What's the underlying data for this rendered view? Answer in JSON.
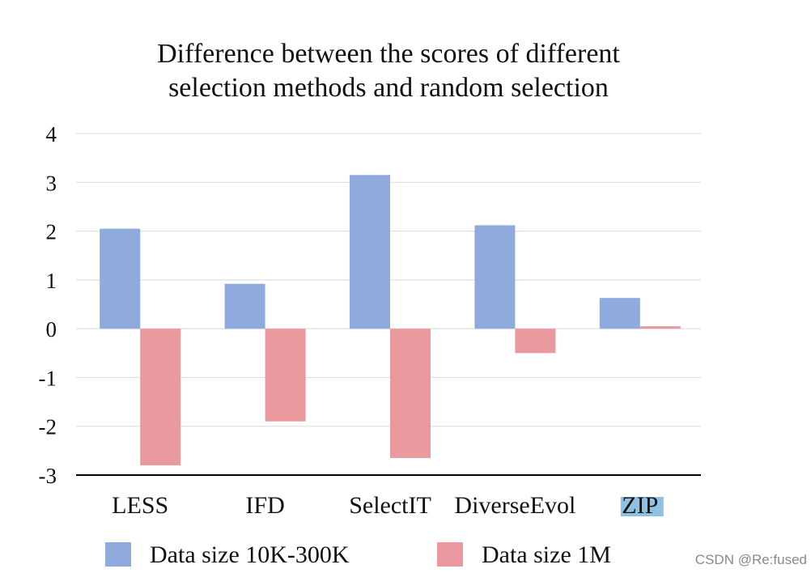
{
  "chart_data": {
    "type": "bar",
    "title": "Difference between the scores of different selection methods and random selection",
    "title_lines": [
      "Difference between the scores of different",
      "selection methods and random selection"
    ],
    "categories": [
      "LESS",
      "IFD",
      "SelectIT",
      "DiverseEvol",
      "ZIP"
    ],
    "series": [
      {
        "name": "Data size 10K-300K",
        "color": "#8faadc",
        "values": [
          2.05,
          0.92,
          3.15,
          2.12,
          0.63
        ]
      },
      {
        "name": "Data size 1M",
        "color": "#ea9a9e",
        "values": [
          -2.8,
          -1.9,
          -2.65,
          -0.5,
          0.05
        ]
      }
    ],
    "ylim": [
      -3,
      4
    ],
    "yticks": [
      4,
      3,
      2,
      1,
      0,
      -1,
      -2,
      -3
    ],
    "ytick_labels": [
      "4",
      "3",
      "2",
      "1",
      "0",
      "-1",
      "-2",
      "-3"
    ],
    "grid": true,
    "legend_position": "bottom",
    "xlabel": "",
    "ylabel": ""
  },
  "watermark": "CSDN @Re:fused",
  "highlight_color": "#8fc1e3",
  "gridline_color": "#d9d9d9",
  "axis_color": "#000000"
}
